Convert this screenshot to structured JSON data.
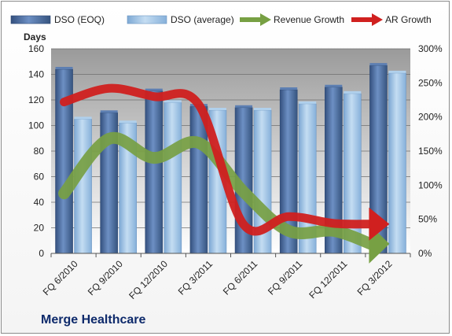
{
  "company": "Merge Healthcare",
  "chart_data": {
    "type": "bar",
    "title": "",
    "ylabel": "Days",
    "ylim": [
      0,
      160
    ],
    "y_ticks": [
      0,
      20,
      40,
      60,
      80,
      100,
      120,
      140,
      160
    ],
    "y2lim": [
      0,
      3
    ],
    "y2_ticks": [
      "0%",
      "50%",
      "100%",
      "150%",
      "200%",
      "250%",
      "300%"
    ],
    "legend_position": "top",
    "categories": [
      "FQ 6/2010",
      "FQ 9/2010",
      "FQ 12/2010",
      "FQ 3/2011",
      "FQ 6/2011",
      "FQ 9/2011",
      "FQ 12/2011",
      "FQ 3/2012"
    ],
    "series": [
      {
        "name": "DSO (EOQ)",
        "kind": "bar",
        "axis": "left",
        "color": "#4a6ea3",
        "values": [
          144,
          110,
          127,
          115,
          114,
          128,
          130,
          147
        ]
      },
      {
        "name": "DSO (average)",
        "kind": "bar",
        "axis": "left",
        "color": "#9dc3e6",
        "values": [
          105,
          102,
          118,
          112,
          112,
          117,
          125,
          141
        ]
      },
      {
        "name": "Revenue Growth",
        "kind": "arrow",
        "axis": "right",
        "color": "#77a043",
        "values": [
          0.88,
          1.68,
          1.4,
          1.62,
          0.9,
          0.33,
          0.33,
          0.14
        ]
      },
      {
        "name": "AR Growth",
        "kind": "arrow",
        "axis": "right",
        "color": "#d0201f",
        "values": [
          2.22,
          2.42,
          2.3,
          2.18,
          0.42,
          0.54,
          0.44,
          0.43
        ]
      }
    ]
  }
}
